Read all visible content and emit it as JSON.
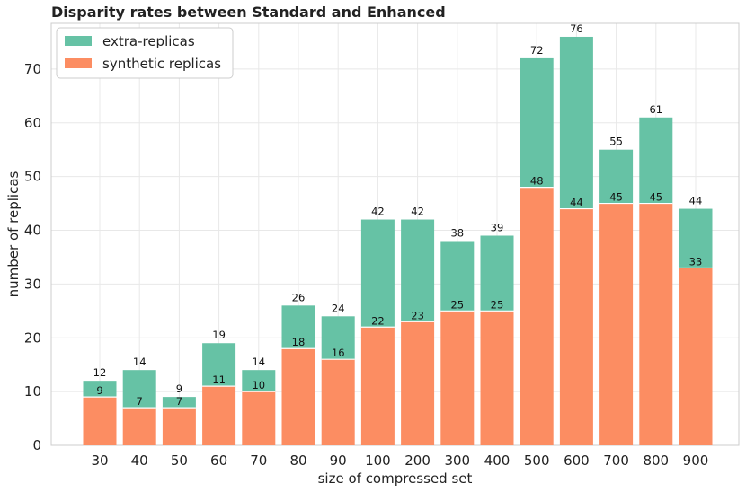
{
  "chart_data": {
    "type": "bar",
    "stacked": true,
    "title": "Disparity rates between Standard and Enhanced",
    "xlabel": "size of compressed set",
    "ylabel": "number of replicas",
    "categories": [
      "30",
      "40",
      "50",
      "60",
      "70",
      "80",
      "90",
      "100",
      "200",
      "300",
      "400",
      "500",
      "600",
      "700",
      "800",
      "900"
    ],
    "series": [
      {
        "name": "synthetic replicas",
        "color": "#fc8d62",
        "values": [
          9,
          7,
          7,
          11,
          10,
          18,
          16,
          22,
          23,
          25,
          25,
          48,
          44,
          45,
          45,
          33
        ]
      },
      {
        "name": "extra-replicas",
        "color": "#66c2a5",
        "values": [
          3,
          7,
          2,
          8,
          4,
          8,
          8,
          20,
          19,
          13,
          14,
          24,
          32,
          10,
          16,
          11
        ]
      }
    ],
    "totals": [
      12,
      14,
      9,
      19,
      14,
      26,
      24,
      42,
      42,
      38,
      39,
      72,
      76,
      55,
      61,
      44
    ],
    "yticks": [
      0,
      10,
      20,
      30,
      40,
      50,
      60,
      70
    ],
    "ylim": [
      0,
      78.5
    ],
    "grid": true,
    "legend": {
      "placement": "top-left",
      "entries": [
        "extra-replicas",
        "synthetic replicas"
      ]
    }
  }
}
